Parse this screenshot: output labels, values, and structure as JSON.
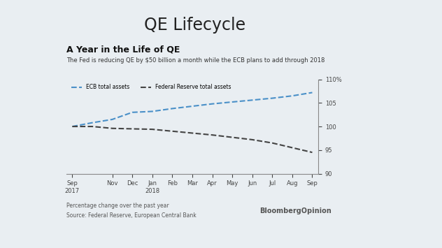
{
  "slide_title": "QE Lifecycle",
  "chart_data": {
    "type": "line",
    "title": "A Year in the Life of QE",
    "subtitle": "The Fed is reducing QE by $50 billion a month while the ECB plans to add through 2018",
    "categories": [
      "Sep\n2017",
      null,
      "Nov",
      "Dec",
      "Jan\n2018",
      "Feb",
      "Mar",
      "Apr",
      "May",
      "Jun",
      "Jul",
      "Aug",
      "Sep"
    ],
    "series": [
      {
        "name": "ECB total assets",
        "color": "#4a90c8",
        "line_style": "dashed",
        "values": [
          100,
          100.8,
          101.5,
          103,
          103.2,
          103.8,
          104.3,
          104.8,
          105.2,
          105.6,
          106,
          106.5,
          107.2
        ]
      },
      {
        "name": "Federal Reserve total assets",
        "color": "#444444",
        "line_style": "dashed",
        "values": [
          100,
          100,
          99.6,
          99.5,
          99.4,
          99,
          98.6,
          98.2,
          97.7,
          97.2,
          96.5,
          95.5,
          94.5
        ]
      }
    ],
    "ylim": [
      90,
      110
    ],
    "yticks": [
      90,
      95,
      100,
      105,
      {
        "value": 110,
        "label": "110%"
      }
    ],
    "legend": "upper left",
    "grid": false,
    "note": "Percentage change over the past year",
    "source": "Source: Federal Reserve, European Central Bank",
    "brand": "BloombergOpinion"
  }
}
